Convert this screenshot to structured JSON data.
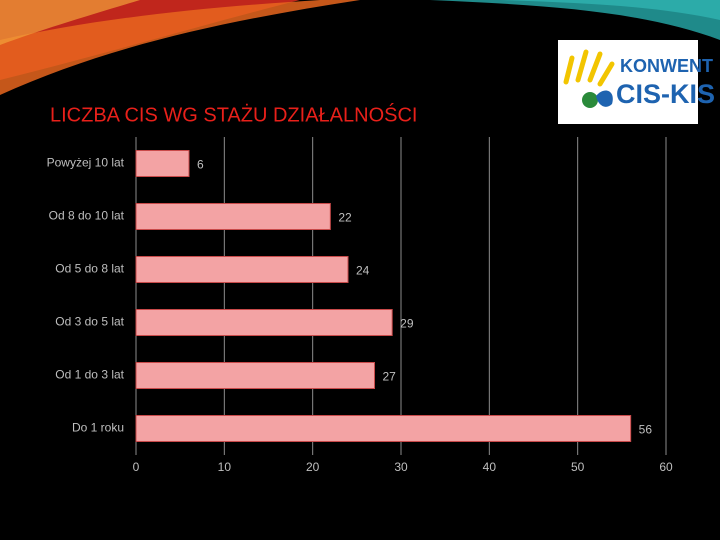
{
  "chart_data": {
    "type": "bar",
    "orientation": "horizontal",
    "title": "LICZBA CIS WG STAŻU DZIAŁALNOŚCI",
    "categories": [
      "Powyżej 10 lat",
      "Od 8 do 10 lat",
      "Od 5 do 8 lat",
      "Od 3 do 5 lat",
      "Od 1 do 3 lat",
      "Do 1 roku"
    ],
    "values": [
      6,
      22,
      24,
      29,
      27,
      56
    ],
    "color": "#f3a3a4",
    "border_color": "#c94a4a",
    "xlim": [
      0,
      60
    ],
    "xticks": [
      0,
      10,
      20,
      30,
      40,
      50,
      60
    ],
    "grid": true
  },
  "logo": {
    "line1": "KONWENT",
    "line2": "CIS-KIS"
  }
}
